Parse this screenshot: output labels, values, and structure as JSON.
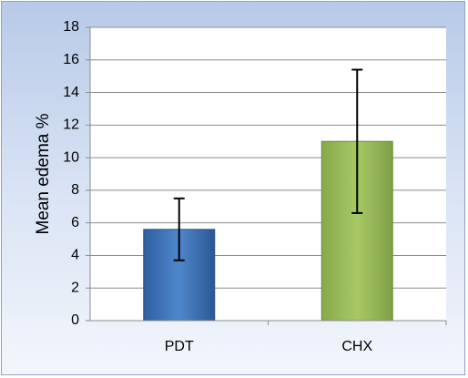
{
  "chart_data": {
    "type": "bar",
    "title": "",
    "xlabel": "",
    "ylabel": "Mean edema %",
    "categories": [
      "PDT",
      "CHX"
    ],
    "series": [
      {
        "values": [
          5.6,
          11.0
        ],
        "error_low": [
          3.7,
          6.6
        ],
        "error_high": [
          7.5,
          15.4
        ],
        "colors": [
          "#3b6fb5",
          "#9bbb59"
        ]
      }
    ],
    "ylim": [
      0,
      18
    ],
    "yticks": [
      0,
      2,
      4,
      6,
      8,
      10,
      12,
      14,
      16,
      18
    ],
    "grid": true,
    "legend": "none"
  }
}
